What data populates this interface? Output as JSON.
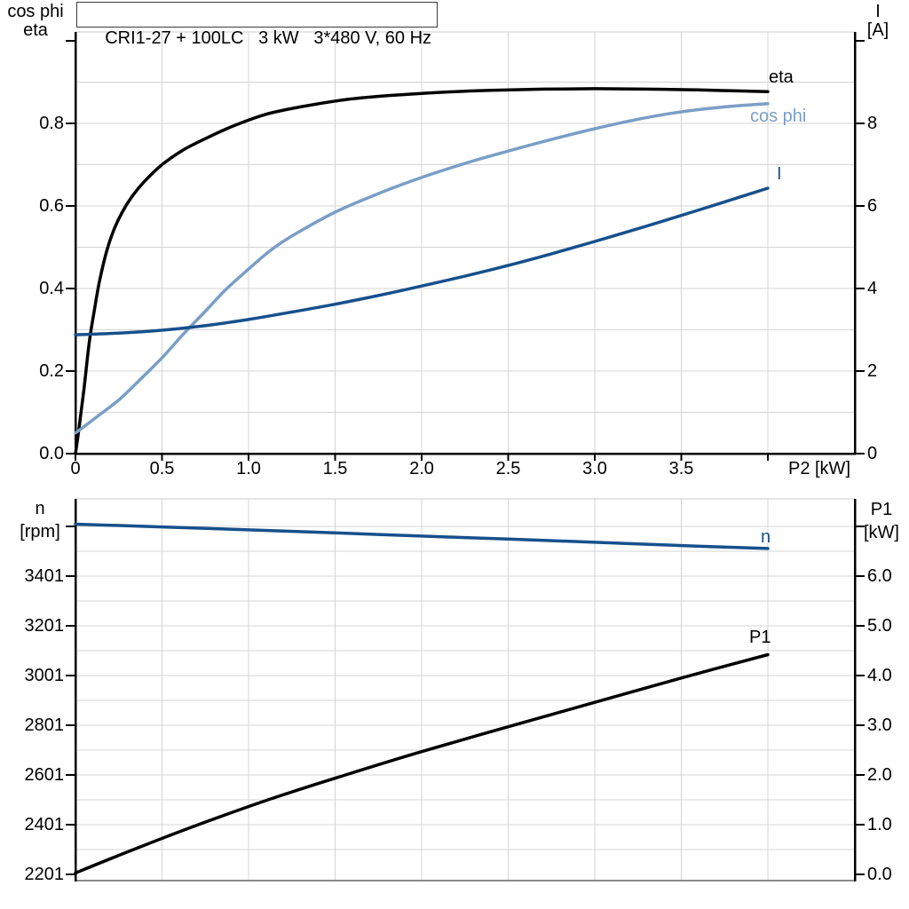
{
  "title": "CRI1-27 + 100LC   3 kW   3*480 V, 60 Hz",
  "colors": {
    "black_curve": "#000000",
    "light_blue_curve": "#7A9EC6",
    "dark_blue_curve": "#17508C",
    "gridline": "#d4d4d4",
    "frame_gray": "#8a8a8a",
    "frame_light": "#cccccc",
    "axis": "#000000"
  },
  "chart_data": [
    {
      "type": "line",
      "title": "CRI1-27 + 100LC   3 kW   3*480 V, 60 Hz",
      "x_axis": {
        "label": "P2 [kW]",
        "min": 0,
        "max": 4.5,
        "tick_values": [
          0,
          0.5,
          1.0,
          1.5,
          2.0,
          2.5,
          3.0,
          3.5,
          4.0
        ],
        "tick_labels": [
          "0",
          "0.5",
          "1.0",
          "1.5",
          "2.0",
          "2.5",
          "3.0",
          "3.5",
          ""
        ],
        "grid_step": 0.5
      },
      "y_left": {
        "label_line1": "cos phi",
        "label_line2": "eta",
        "min": 0,
        "max": 1.02,
        "tick_values": [
          0.0,
          0.2,
          0.4,
          0.6,
          0.8,
          1.0
        ],
        "tick_labels": [
          "0.0",
          "0.2",
          "0.4",
          "0.6",
          "0.8",
          ""
        ],
        "grid_step": 0.1
      },
      "y_right": {
        "label_line1": "I",
        "label_line2": "[A]",
        "min": 0,
        "max": 10.2,
        "tick_values": [
          0,
          2,
          4,
          6,
          8,
          10
        ],
        "tick_labels": [
          "0",
          "2",
          "4",
          "6",
          "8",
          ""
        ]
      },
      "legend_position": "curve-end-labels",
      "grid": true,
      "series": [
        {
          "name": "eta",
          "axis": "left",
          "color": "#000000",
          "x": [
            0,
            0.02,
            0.05,
            0.08,
            0.11,
            0.14,
            0.18,
            0.22,
            0.27,
            0.33,
            0.4,
            0.5,
            0.62,
            0.76,
            0.92,
            1.1,
            1.3,
            1.55,
            1.8,
            2.1,
            2.4,
            2.7,
            3.0,
            3.3,
            3.6,
            3.8,
            4.0
          ],
          "y": [
            0,
            0.06,
            0.16,
            0.27,
            0.35,
            0.42,
            0.49,
            0.54,
            0.585,
            0.625,
            0.66,
            0.7,
            0.735,
            0.765,
            0.795,
            0.822,
            0.84,
            0.857,
            0.867,
            0.875,
            0.88,
            0.883,
            0.884,
            0.883,
            0.881,
            0.879,
            0.877
          ]
        },
        {
          "name": "cos phi",
          "axis": "left",
          "color": "#7A9EC6",
          "x": [
            0,
            0.12,
            0.25,
            0.37,
            0.5,
            0.62,
            0.75,
            0.87,
            1.0,
            1.12,
            1.25,
            1.5,
            1.75,
            2.0,
            2.25,
            2.5,
            2.75,
            3.0,
            3.25,
            3.5,
            3.75,
            4.0
          ],
          "y": [
            0.05,
            0.088,
            0.13,
            0.178,
            0.232,
            0.288,
            0.345,
            0.398,
            0.447,
            0.49,
            0.527,
            0.585,
            0.63,
            0.669,
            0.703,
            0.733,
            0.761,
            0.787,
            0.81,
            0.828,
            0.84,
            0.848
          ]
        },
        {
          "name": "I",
          "axis": "right",
          "color": "#17508C",
          "x": [
            0,
            0.25,
            0.5,
            0.75,
            1.0,
            1.25,
            1.5,
            1.75,
            2.0,
            2.25,
            2.5,
            2.75,
            3.0,
            3.25,
            3.5,
            3.75,
            4.0
          ],
          "y": [
            2.88,
            2.92,
            2.99,
            3.1,
            3.25,
            3.43,
            3.62,
            3.83,
            4.06,
            4.3,
            4.56,
            4.84,
            5.14,
            5.45,
            5.77,
            6.1,
            6.43
          ]
        }
      ]
    },
    {
      "type": "line",
      "title": "",
      "x_axis": {
        "label": "",
        "min": 0,
        "max": 4.5,
        "tick_values": [],
        "tick_labels": [],
        "grid_step": 0.5
      },
      "y_left": {
        "label_line1": "n",
        "label_line2": "[rpm]",
        "min": 2151,
        "max": 3710,
        "tick_values": [
          2201,
          2401,
          2601,
          2801,
          3001,
          3201,
          3401,
          3601
        ],
        "tick_labels": [
          "2201",
          "2401",
          "2601",
          "2801",
          "3001",
          "3201",
          "3401",
          ""
        ],
        "grid_step": 100
      },
      "y_right": {
        "label_line1": "P1",
        "label_line2": "[kW]",
        "min": -0.15,
        "max": 7.6,
        "tick_values": [
          0,
          1,
          2,
          3,
          4,
          5,
          6,
          7
        ],
        "tick_labels": [
          "0.0",
          "1.0",
          "2.0",
          "3.0",
          "4.0",
          "5.0",
          "6.0",
          ""
        ]
      },
      "legend_position": "curve-end-labels",
      "grid": true,
      "series": [
        {
          "name": "n",
          "axis": "left",
          "color": "#17508C",
          "x": [
            0,
            0.5,
            1.0,
            1.5,
            2.0,
            2.5,
            3.0,
            3.5,
            4.0
          ],
          "y": [
            3610,
            3599,
            3587,
            3575,
            3562,
            3550,
            3537,
            3524,
            3512
          ]
        },
        {
          "name": "P1",
          "axis": "right",
          "color": "#000000",
          "x": [
            0,
            0.35,
            0.71,
            1.13,
            1.56,
            2.0,
            2.5,
            3.0,
            3.5,
            4.0
          ],
          "y": [
            0.03,
            0.52,
            1.0,
            1.52,
            2.0,
            2.47,
            2.97,
            3.46,
            3.95,
            4.42
          ]
        }
      ]
    }
  ]
}
